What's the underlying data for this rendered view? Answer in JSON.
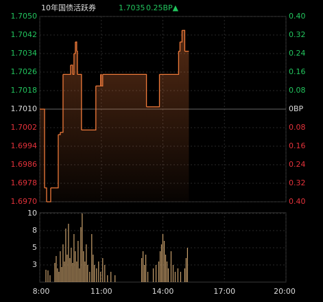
{
  "chart_data": [
    {
      "type": "line",
      "step": "after",
      "title": "10年国债活跃券",
      "price": 1.7035,
      "change": {
        "value": 0.25,
        "label": "0.25BP▲"
      },
      "color": "#f07a3a",
      "x": [
        8.0,
        8.233,
        8.333,
        8.533,
        8.9,
        9.0,
        9.133,
        9.5,
        9.6,
        9.667,
        9.733,
        9.8,
        9.833,
        10.033,
        10.733,
        10.967,
        11.0,
        11.067,
        13.2,
        13.833,
        14.767,
        14.833,
        14.933,
        15.067,
        15.267
      ],
      "values": [
        1.701,
        1.6976,
        1.697,
        1.6976,
        1.6999,
        1.7,
        1.7025,
        1.7029,
        1.7025,
        1.7034,
        1.7039,
        1.7035,
        1.7025,
        1.7001,
        1.702,
        1.7025,
        1.702,
        1.7025,
        1.7011,
        1.7025,
        1.7035,
        1.7039,
        1.7044,
        1.7035,
        1.7035
      ],
      "ylim": [
        1.697,
        1.705
      ],
      "yticks": [
        {
          "value": 1.705,
          "label": "1.7050"
        },
        1.7042,
        1.7034,
        1.7026,
        1.7018,
        {
          "value": 1.701,
          "label": "1.7010"
        },
        1.7002,
        1.6994,
        1.6986,
        1.6978,
        {
          "value": 1.697,
          "label": "1.6970"
        }
      ],
      "y2lim": [
        -0.4,
        0.4
      ],
      "y2ticks": [
        {
          "value": 0.4,
          "label": "0.40"
        },
        0.32,
        0.24,
        0.16,
        0.08,
        {
          "value": 0,
          "label": "0BP"
        },
        {
          "value": -0.08,
          "label": "0.08"
        },
        {
          "value": -0.16,
          "label": "0.16"
        },
        {
          "value": -0.24,
          "label": "0.24"
        },
        {
          "value": -0.32,
          "label": "0.32"
        },
        {
          "value": -0.4,
          "label": "0.40"
        }
      ],
      "grid": true
    },
    {
      "type": "bar",
      "color": "#c9a06c",
      "x": [
        8.3,
        8.4,
        8.5,
        8.733,
        8.8,
        8.867,
        8.933,
        9.0,
        9.067,
        9.133,
        9.2,
        9.267,
        9.333,
        9.4,
        9.467,
        9.533,
        9.6,
        9.667,
        9.733,
        9.8,
        9.867,
        9.933,
        10.0,
        10.067,
        10.133,
        10.2,
        10.267,
        10.333,
        10.433,
        10.533,
        10.6,
        10.667,
        10.767,
        10.867,
        10.967,
        11.067,
        11.167,
        11.3,
        11.467,
        11.667,
        12.967,
        13.033,
        13.1,
        13.167,
        13.267,
        13.533,
        13.667,
        13.8,
        13.867,
        13.933,
        14.0,
        14.067,
        14.133,
        14.2,
        14.267,
        14.4,
        14.5,
        14.6,
        14.733,
        14.867,
        15.067,
        15.133,
        15.2
      ],
      "values": [
        1.8,
        1.7,
        1.0,
        2.8,
        3.8,
        2.0,
        1.5,
        4.5,
        2.2,
        5.5,
        3.0,
        7.8,
        4.0,
        8.5,
        3.5,
        5.0,
        2.8,
        7.0,
        4.5,
        3.0,
        6.0,
        2.0,
        8.0,
        10.0,
        4.5,
        3.0,
        5.5,
        2.5,
        1.5,
        7.0,
        4.0,
        2.5,
        2.0,
        3.0,
        1.5,
        3.5,
        2.5,
        1.0,
        1.5,
        1.0,
        3.5,
        4.5,
        2.5,
        4.0,
        1.5,
        2.0,
        2.5,
        3.0,
        4.5,
        5.5,
        7.0,
        6.0,
        4.0,
        3.0,
        2.0,
        4.5,
        2.5,
        1.5,
        2.0,
        1.5,
        2.0,
        3.5,
        5.0
      ],
      "ylim": [
        0,
        10.1
      ],
      "yticks": [
        {
          "value": 10,
          "label": "10"
        },
        {
          "value": 7.5,
          "label": "8"
        },
        5,
        {
          "value": 2.5,
          "label": "3"
        }
      ],
      "xlim": [
        8,
        20
      ],
      "xticks": [
        {
          "value": 8,
          "label": "8:00"
        },
        {
          "value": 11,
          "label": "11:00"
        },
        {
          "value": 14,
          "label": "14:00"
        },
        {
          "value": 17,
          "label": "17:00"
        },
        {
          "value": 20,
          "label": "20:00"
        }
      ],
      "grid": true
    }
  ]
}
